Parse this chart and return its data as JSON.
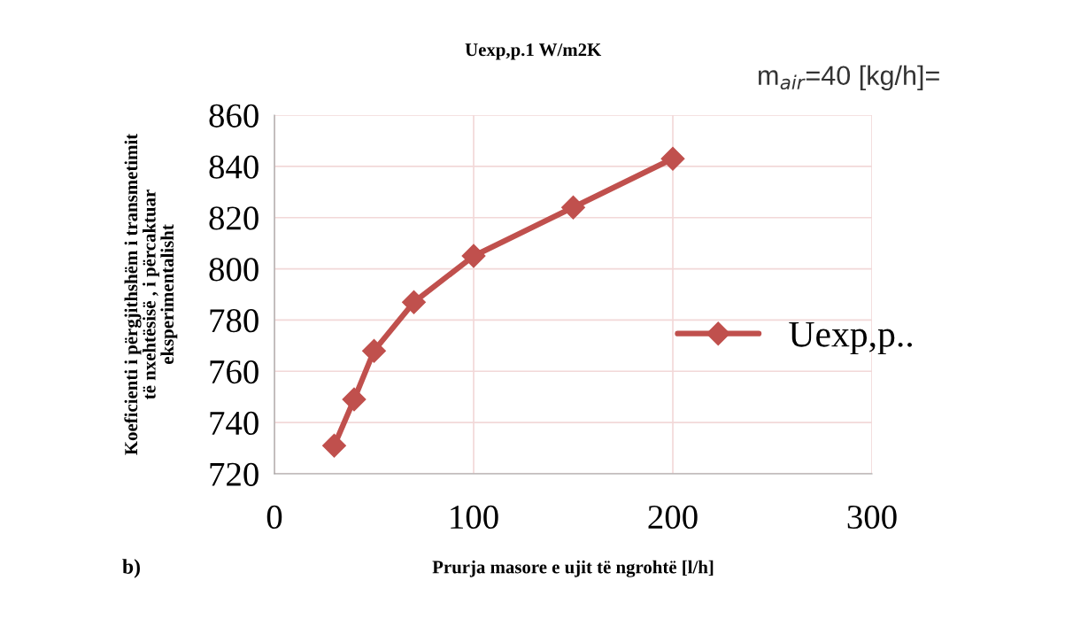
{
  "chart_data": {
    "type": "line",
    "title": "Uexp,p.1 W/m2K",
    "xlabel": "Prurja masore e ujit të ngrohtë [l/h]",
    "ylabel": "Koeficienti i përgjithshëm i transmetimit\ntë nxehtësisë , i përcaktuar\neksperimentalisht",
    "annotations": [
      "m$_{air}$=40 [kg/h]=",
      "b)"
    ],
    "x": [
      30,
      40,
      50,
      70,
      100,
      150,
      200
    ],
    "series": [
      {
        "name": "Uexp,p..",
        "color": "#c0504d",
        "values": [
          731,
          749,
          768,
          787,
          805,
          824,
          843
        ]
      }
    ],
    "xlim": [
      0,
      300
    ],
    "xticks": [
      0,
      100,
      200,
      300
    ],
    "ylim": [
      720,
      860
    ],
    "yticks": [
      720,
      740,
      760,
      780,
      800,
      820,
      840,
      860
    ],
    "grid": true,
    "legend": "right",
    "marker": "diamond",
    "line_style": "solid"
  }
}
